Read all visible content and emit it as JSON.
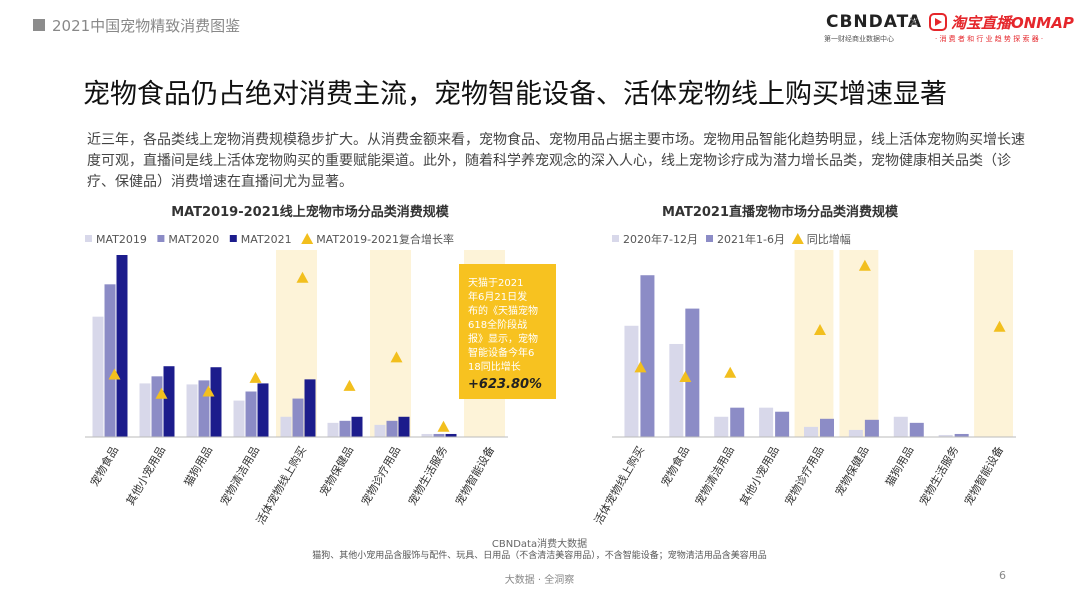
{
  "header": {
    "report_title": "2021中国宠物精致消费图鉴"
  },
  "logos": {
    "cbn": "CBNDATA",
    "cbn_sub": "第一财经商业数据中心",
    "x": "×",
    "taobao": "淘宝直播ONMAP",
    "taobao_sub": "· 消 费 者 和 行 业 趋 势 探 索 器 ·"
  },
  "main_title": "宠物食品仍占绝对消费主流，宠物智能设备、活体宠物线上购买增速显著",
  "intro": "近三年，各品类线上宠物消费规模稳步扩大。从消费金额来看，宠物食品、宠物用品占据主要市场。宠物用品智能化趋势明显，线上活体宠物购买增长速度可观，直播间是线上活体宠物购买的重要赋能渠道。此外，随着科学养宠观念的深入人心，线上宠物诊疗成为潜力增长品类，宠物健康相关品类（诊疗、保健品）消费增速在直播间尤为显著。",
  "colors": {
    "light": "#d8d8ea",
    "mid": "#8c8cc6",
    "dark": "#1c1c8c",
    "marker": "#f2bf1e",
    "highlight": "#fdf3d8",
    "callout": "#f7c220"
  },
  "chart_data": [
    {
      "type": "bar",
      "title": "MAT2019-2021线上宠物市场分品类消费规模",
      "categories": [
        "宠物食品",
        "其他小宠用品",
        "猫狗用品",
        "宠物清洁用品",
        "活体宠物线上购买",
        "宠物保健品",
        "宠物诊疗用品",
        "宠物生活服务",
        "宠物智能设备"
      ],
      "series": [
        {
          "name": "MAT2019",
          "values": [
            119,
            53,
            52,
            36,
            20,
            14,
            12,
            3,
            0
          ]
        },
        {
          "name": "MAT2020",
          "values": [
            151,
            60,
            56,
            45,
            38,
            16,
            16,
            3,
            0
          ]
        },
        {
          "name": "MAT2021",
          "values": [
            180,
            70,
            69,
            53,
            57,
            20,
            20,
            3,
            0
          ]
        }
      ],
      "growth_series": {
        "name": "MAT2019-2021复合增长率",
        "values": [
          55,
          38,
          40,
          52,
          140,
          45,
          70,
          9,
          null
        ]
      },
      "highlighted": [
        "活体宠物线上购买",
        "宠物诊疗用品",
        "宠物智能设备"
      ],
      "callout": {
        "text": "天猫于2021年6月21日发布的《天猫宠物618全阶段战报》显示，宠物智能设备今年618同比增长",
        "value": "+623.80%"
      },
      "legend_position": "top"
    },
    {
      "type": "bar",
      "title": "MAT2021直播宠物市场分品类消费规模",
      "categories": [
        "活体宠物线上购买",
        "宠物食品",
        "宠物清洁用品",
        "其他小宠用品",
        "宠物诊疗用品",
        "宠物保健品",
        "猫狗用品",
        "宠物生活服务",
        "宠物智能设备"
      ],
      "series": [
        {
          "name": "2020年7-12月",
          "values": [
            110,
            92,
            20,
            29,
            10,
            7,
            20,
            2,
            0
          ]
        },
        {
          "name": "2021年1-6月",
          "values": [
            160,
            127,
            29,
            25,
            18,
            17,
            14,
            3,
            0
          ]
        }
      ],
      "growth_series": {
        "name": "同比增幅",
        "values": [
          65,
          56,
          60,
          null,
          100,
          160,
          null,
          null,
          103
        ]
      },
      "highlighted": [
        "宠物诊疗用品",
        "宠物保健品",
        "宠物智能设备"
      ],
      "legend_position": "top"
    }
  ],
  "source": "CBNData消费大数据",
  "note": "猫狗、其他小宠用品含服饰与配件、玩具、日用品（不含清洁美容用品），不含智能设备；宠物清洁用品含美容用品",
  "footer": "大数据 · 全洞察",
  "page_number": "6"
}
